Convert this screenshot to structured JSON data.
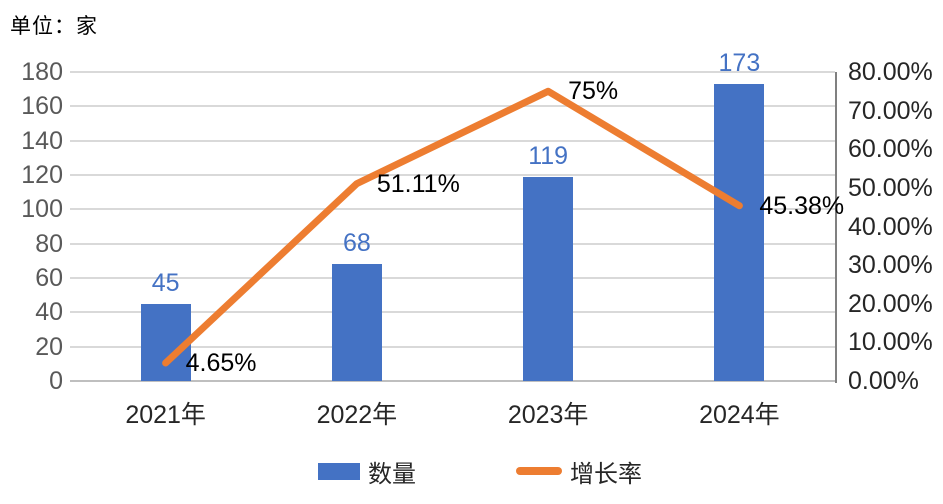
{
  "unit_label": "单位：家",
  "chart_data": {
    "type": "bar+line",
    "title": "",
    "unit_note": "单位：家",
    "categories": [
      "2021年",
      "2022年",
      "2023年",
      "2024年"
    ],
    "series": [
      {
        "name": "数量",
        "type": "bar",
        "axis": "left",
        "values": [
          45,
          68,
          119,
          173
        ],
        "data_labels": [
          "45",
          "68",
          "119",
          "173"
        ],
        "color": "#4472C4"
      },
      {
        "name": "增长率",
        "type": "line",
        "axis": "right",
        "values": [
          4.65,
          51.11,
          75,
          45.38
        ],
        "data_labels": [
          "4.65%",
          "51.11%",
          "75%",
          "45.38%"
        ],
        "color": "#ED7D31"
      }
    ],
    "left_axis": {
      "min": 0,
      "max": 180,
      "step": 20,
      "ticks": [
        "180",
        "160",
        "140",
        "120",
        "100",
        "80",
        "60",
        "40",
        "20",
        "0"
      ]
    },
    "right_axis": {
      "min": 0,
      "max": 80,
      "step": 10,
      "ticks": [
        "80.00%",
        "70.00%",
        "60.00%",
        "50.00%",
        "40.00%",
        "30.00%",
        "20.00%",
        "10.00%",
        "0.00%"
      ]
    },
    "grid": true,
    "legend_position": "bottom"
  },
  "legend": {
    "items": [
      {
        "label": "数量",
        "swatch": "bar",
        "color": "#4472C4"
      },
      {
        "label": "增长率",
        "swatch": "line",
        "color": "#ED7D31"
      }
    ]
  },
  "colors": {
    "bar": "#4472C4",
    "line": "#ED7D31",
    "gridline": "#d9d9d9",
    "bottom_axis": "#bfbfbf",
    "right_axis": "#808080",
    "left_tick_text": "#595959",
    "right_tick_text": "#262626"
  }
}
